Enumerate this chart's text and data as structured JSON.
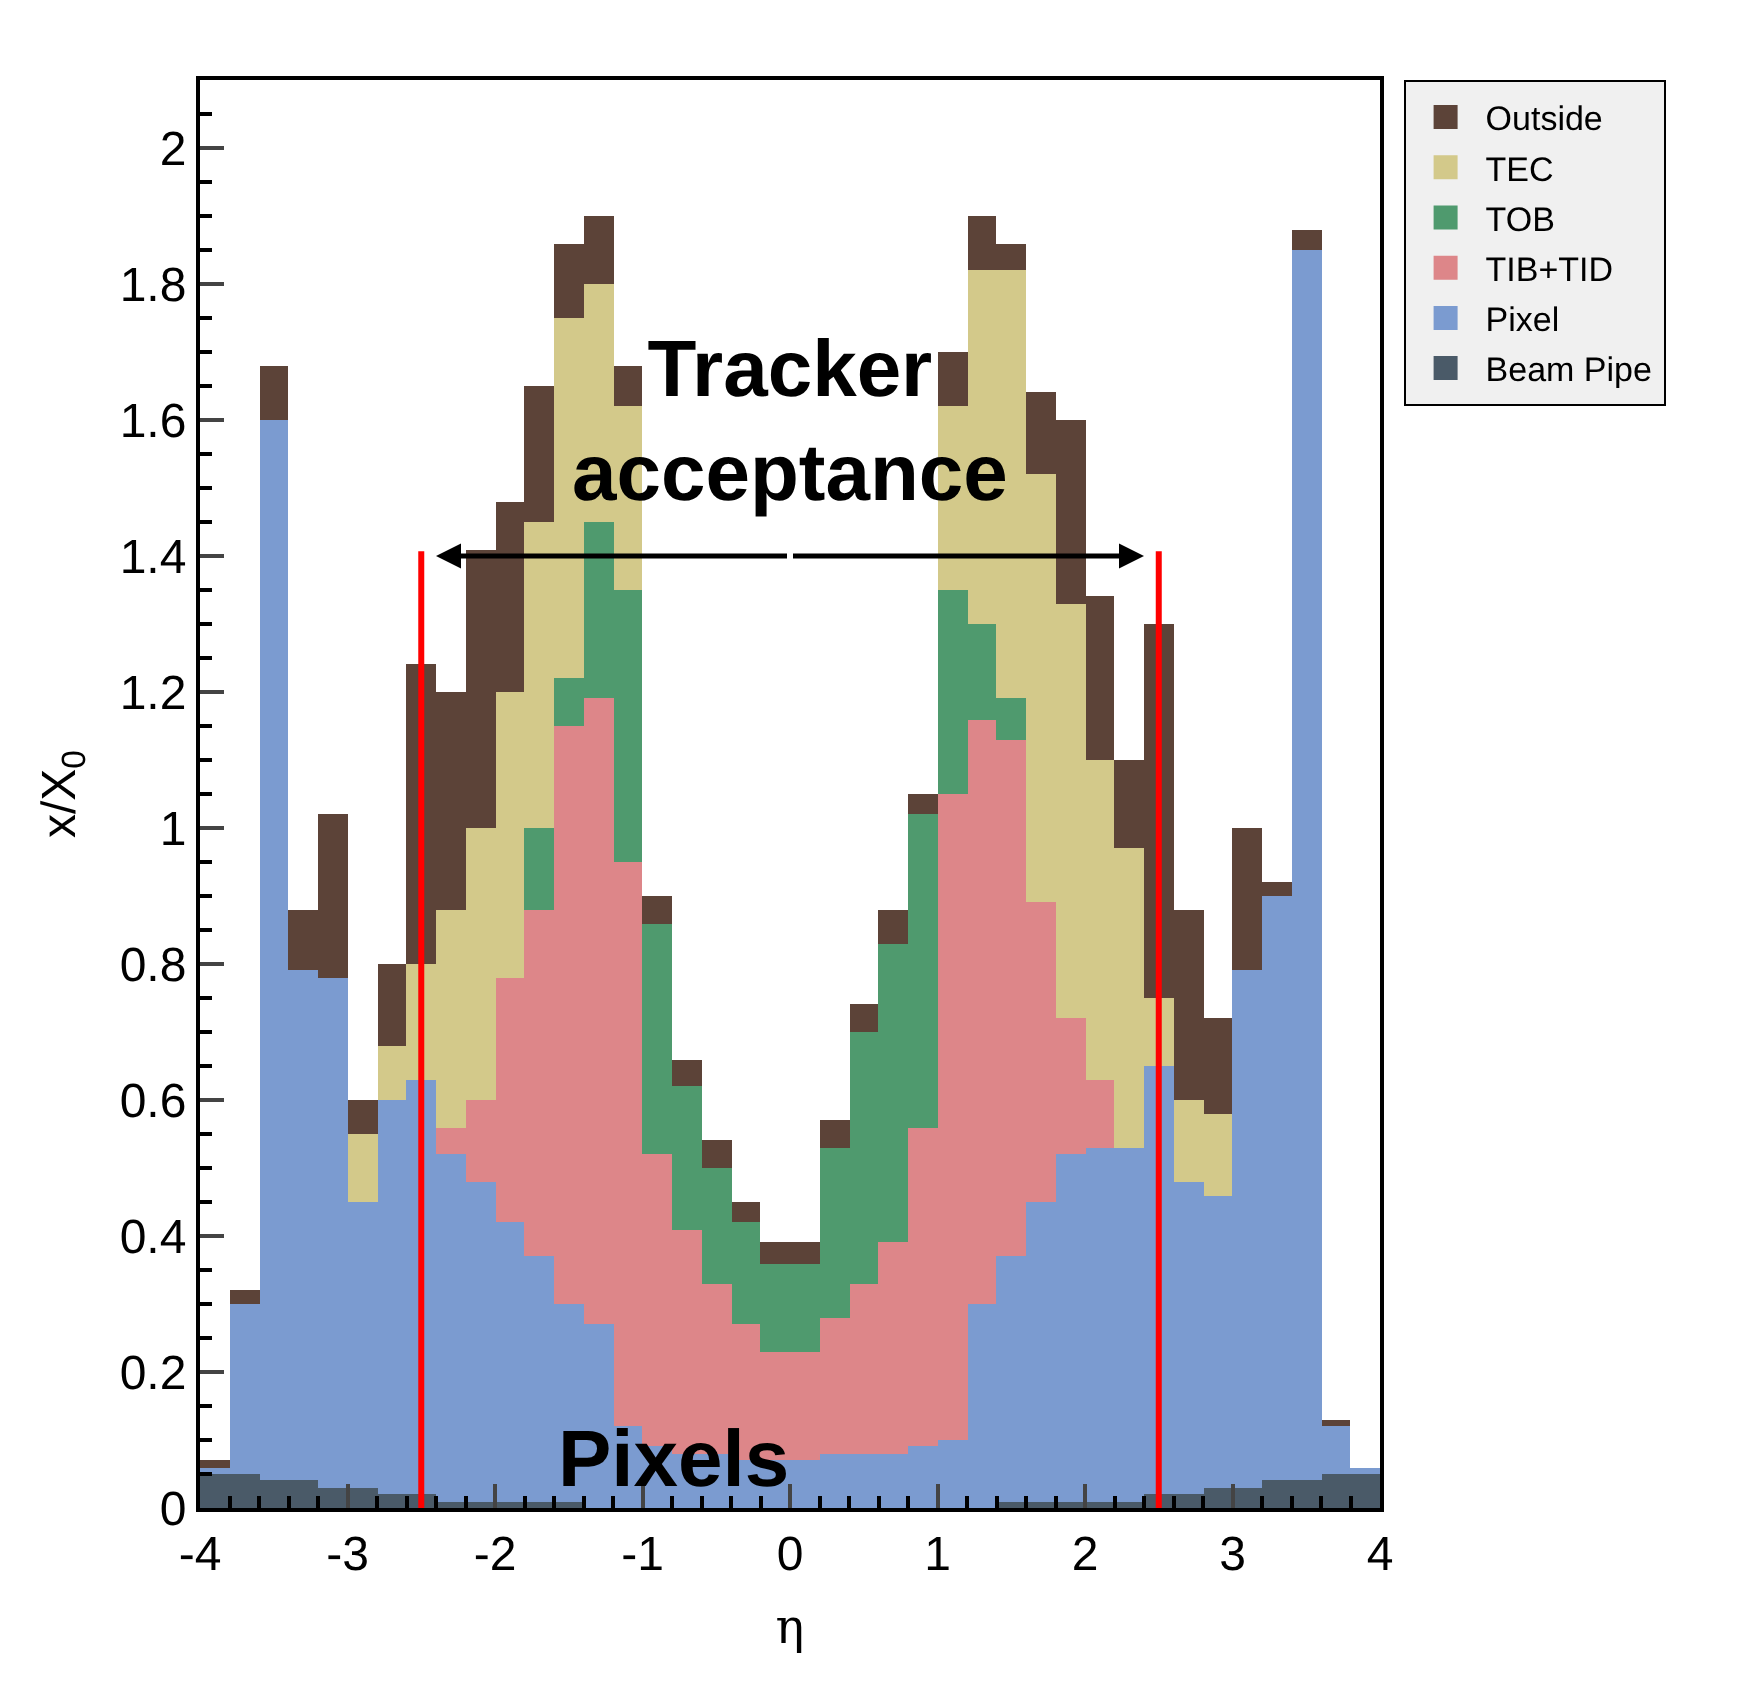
{
  "chart_data": {
    "type": "bar",
    "stacked": true,
    "xlabel": "η",
    "ylabel": "x/X$_{0}$",
    "x": [
      -3.9,
      -3.7,
      -3.5,
      -3.3,
      -3.1,
      -2.9,
      -2.7,
      -2.5,
      -2.3,
      -2.1,
      -1.9,
      -1.7,
      -1.5,
      -1.3,
      -1.1,
      -0.9,
      -0.7,
      -0.5,
      -0.3,
      -0.1,
      0.1,
      0.3,
      0.5,
      0.7,
      0.9,
      1.1,
      1.3,
      1.5,
      1.7,
      1.9,
      2.1,
      2.3,
      2.5,
      2.7,
      2.9,
      3.1,
      3.3,
      3.5,
      3.7,
      3.9
    ],
    "series": [
      {
        "name": "Beam Pipe",
        "color": "#4a5a68",
        "values": [
          0.05,
          0.05,
          0.04,
          0.04,
          0.03,
          0.03,
          0.02,
          0.02,
          0.01,
          0.01,
          0.01,
          0.01,
          0.01,
          0,
          0,
          0,
          0,
          0,
          0,
          0,
          0,
          0,
          0,
          0,
          0,
          0,
          0,
          0.01,
          0.01,
          0.01,
          0.01,
          0.01,
          0.02,
          0.02,
          0.03,
          0.03,
          0.04,
          0.04,
          0.05,
          0.05
        ]
      },
      {
        "name": "Pixel",
        "color": "#7b9bd0",
        "values": [
          0.01,
          0.25,
          1.56,
          0.75,
          0.75,
          0.42,
          0.58,
          0.61,
          0.51,
          0.47,
          0.41,
          0.36,
          0.29,
          0.27,
          0.12,
          0.09,
          0.08,
          0.08,
          0.07,
          0.07,
          0.07,
          0.08,
          0.08,
          0.08,
          0.09,
          0.1,
          0.3,
          0.36,
          0.44,
          0.51,
          0.52,
          0.52,
          0.63,
          0.46,
          0.43,
          0.76,
          0.86,
          1.81,
          0.07,
          0.01
        ]
      },
      {
        "name": "TIB+TID",
        "color": "#dd8689",
        "values": [
          0,
          0,
          0,
          0,
          0,
          0,
          0,
          0,
          0.04,
          0.12,
          0.36,
          0.51,
          0.85,
          0.92,
          0.83,
          0.43,
          0.33,
          0.25,
          0.2,
          0.16,
          0.16,
          0.2,
          0.25,
          0.31,
          0.47,
          0.95,
          0.86,
          0.76,
          0.44,
          0.2,
          0.1,
          0,
          0,
          0,
          0,
          0,
          0,
          0,
          0,
          0
        ]
      },
      {
        "name": "TOB",
        "color": "#4f9a6e",
        "values": [
          0,
          0,
          0,
          0,
          0,
          0,
          0,
          0,
          0,
          0,
          0,
          0.12,
          0.07,
          0.26,
          0.4,
          0.34,
          0.21,
          0.17,
          0.15,
          0.13,
          0.13,
          0.25,
          0.37,
          0.44,
          0.46,
          0.3,
          0.14,
          0.06,
          0,
          0,
          0,
          0,
          0,
          0,
          0,
          0,
          0,
          0,
          0,
          0
        ]
      },
      {
        "name": "TEC",
        "color": "#d3c98a",
        "values": [
          0,
          0,
          0,
          0,
          0,
          0.1,
          0.08,
          0.17,
          0.32,
          0.4,
          0.42,
          0.45,
          0.53,
          0.35,
          0.27,
          0,
          0,
          0,
          0,
          0,
          0,
          0,
          0,
          0,
          0,
          0.27,
          0.52,
          0.63,
          0.63,
          0.61,
          0.47,
          0.44,
          0.1,
          0.12,
          0.12,
          0,
          0,
          0,
          0,
          0
        ]
      },
      {
        "name": "Outside",
        "color": "#5c4338",
        "values": [
          0.01,
          0.02,
          0.08,
          0.09,
          0.24,
          0.05,
          0.12,
          0.44,
          0.32,
          0.41,
          0.28,
          0.2,
          0.11,
          0.1,
          0.06,
          0.04,
          0.04,
          0.04,
          0.03,
          0.03,
          0.03,
          0.04,
          0.04,
          0.05,
          0.03,
          0.08,
          0.08,
          0.04,
          0.12,
          0.27,
          0.24,
          0.13,
          0.55,
          0.28,
          0.14,
          0.21,
          0.02,
          0.03,
          0.01,
          0
        ]
      }
    ],
    "xlim": [
      -4,
      4
    ],
    "xticks": [
      -4,
      -3,
      -2,
      -1,
      0,
      1,
      2,
      3,
      4
    ],
    "ylim": [
      0,
      2.1
    ],
    "yticks": [
      0,
      0.2,
      0.4,
      0.6,
      0.8,
      1,
      1.2,
      1.4,
      1.6,
      1.8,
      2
    ],
    "ref_lines": [
      {
        "axis": "x",
        "value": -2.5,
        "color": "#ff0000"
      },
      {
        "axis": "x",
        "value": 2.5,
        "color": "#ff0000"
      }
    ],
    "annotations": [
      "Tracker acceptance",
      "Pixels"
    ],
    "legend": "right"
  }
}
